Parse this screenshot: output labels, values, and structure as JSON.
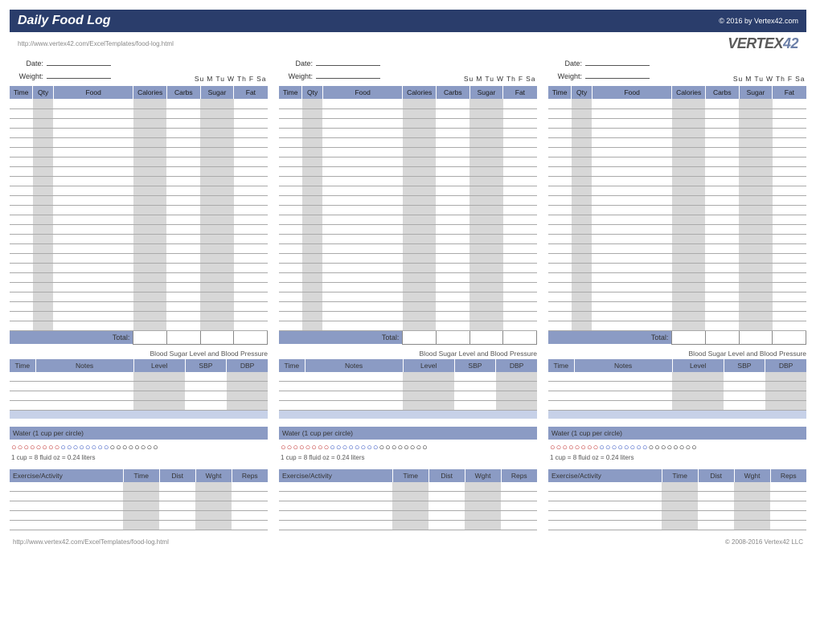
{
  "header": {
    "title": "Daily Food Log",
    "copyright": "© 2016 by Vertex42.com",
    "url": "http://www.vertex42.com/ExcelTemplates/food-log.html",
    "logo_pre": "VERTEX",
    "logo_num": "42"
  },
  "labels": {
    "date": "Date:",
    "weight": "Weight:",
    "days": [
      "Su",
      "M",
      "Tu",
      "W",
      "Th",
      "F",
      "Sa"
    ],
    "food_cols": {
      "time": "Time",
      "qty": "Qty",
      "food": "Food",
      "cal": "Calories",
      "carb": "Carbs",
      "sug": "Sugar",
      "fat": "Fat"
    },
    "total": "Total:",
    "bp_title": "Blood Sugar Level and Blood Pressure",
    "bp_cols": {
      "time": "Time",
      "notes": "Notes",
      "level": "Level",
      "sbp": "SBP",
      "dbp": "DBP"
    },
    "water_title": "Water (1 cup per circle)",
    "water_conv": "1 cup = 8 fluid oz = 0.24 liters",
    "ex_cols": {
      "act": "Exercise/Activity",
      "time": "Time",
      "dist": "Dist",
      "wght": "Wght",
      "reps": "Reps"
    }
  },
  "layout": {
    "food_rows": 24,
    "bp_rows": 4,
    "ex_rows": 5,
    "water_circles": {
      "red": 8,
      "blue": 8,
      "black": 8
    }
  },
  "footer": {
    "url": "http://www.vertex42.com/ExcelTemplates/food-log.html",
    "copy": "© 2008-2016 Vertex42 LLC"
  },
  "colors": {
    "header_bg": "#2a3d6b",
    "band_bg": "#8b9bc4",
    "shade_bg": "#d7d7d7",
    "spacer_bg": "#c7d1e8"
  }
}
